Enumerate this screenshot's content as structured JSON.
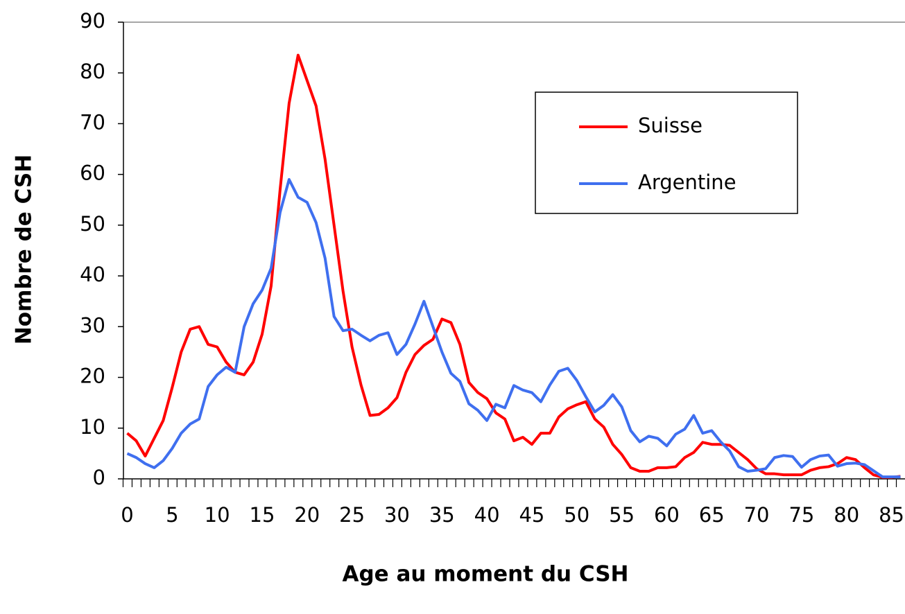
{
  "chart_data": {
    "type": "line",
    "xlabel": "Age au moment du CSH",
    "ylabel": "Nombre de CSH",
    "x": [
      0,
      1,
      2,
      3,
      4,
      5,
      6,
      7,
      8,
      9,
      10,
      11,
      12,
      13,
      14,
      15,
      16,
      17,
      18,
      19,
      20,
      21,
      22,
      23,
      24,
      25,
      26,
      27,
      28,
      29,
      30,
      31,
      32,
      33,
      34,
      35,
      36,
      37,
      38,
      39,
      40,
      41,
      42,
      43,
      44,
      45,
      46,
      47,
      48,
      49,
      50,
      51,
      52,
      53,
      54,
      55,
      56,
      57,
      58,
      59,
      60,
      61,
      62,
      63,
      64,
      65,
      66,
      67,
      68,
      69,
      70,
      71,
      72,
      73,
      74,
      75,
      76,
      77,
      78,
      79,
      80,
      81,
      82,
      83,
      84,
      85,
      86
    ],
    "series": [
      {
        "name": "Suisse",
        "color": "#ff0000",
        "values": [
          9,
          7.5,
          4.5,
          8,
          11.5,
          18,
          25,
          29.5,
          30,
          26.5,
          26,
          23,
          21,
          20.5,
          23,
          28.5,
          38,
          57,
          74,
          83.5,
          78.5,
          73.5,
          63,
          50,
          37,
          26,
          18.5,
          12.5,
          12.7,
          14,
          16,
          21,
          24.5,
          26.3,
          27.5,
          31.5,
          30.8,
          26.5,
          19,
          17,
          15.8,
          13,
          11.8,
          7.5,
          8.2,
          6.8,
          9,
          9,
          12.2,
          13.8,
          14.6,
          15.2,
          11.8,
          10.2,
          6.8,
          4.8,
          2.2,
          1.5,
          1.5,
          2.2,
          2.2,
          2.4,
          4.2,
          5.2,
          7.2,
          6.8,
          6.8,
          6.6,
          5.2,
          3.8,
          2,
          1,
          1,
          0.8,
          0.8,
          0.8,
          1.7,
          2.2,
          2.4,
          3,
          4.2,
          3.8,
          2.2,
          0.8,
          0.3,
          0.3,
          0.5
        ]
      },
      {
        "name": "Argentine",
        "color": "#3f6fef",
        "values": [
          5,
          4.2,
          3,
          2.2,
          3.6,
          6,
          9,
          10.8,
          11.8,
          18.2,
          20.5,
          22,
          21,
          30,
          34.5,
          37.2,
          41.5,
          52.5,
          59,
          55.5,
          54.5,
          50.5,
          43.5,
          32,
          29.2,
          29.5,
          28.3,
          27.2,
          28.3,
          28.8,
          24.5,
          26.5,
          30.5,
          35,
          30,
          25,
          20.8,
          19.2,
          14.8,
          13.5,
          11.5,
          14.7,
          14,
          18.4,
          17.5,
          17,
          15.2,
          18.5,
          21.2,
          21.8,
          19.4,
          16.2,
          13.2,
          14.5,
          16.6,
          14.2,
          9.5,
          7.3,
          8.4,
          8,
          6.5,
          8.8,
          9.8,
          12.5,
          9,
          9.5,
          7.3,
          5.5,
          2.4,
          1.5,
          1.7,
          2,
          4.2,
          4.6,
          4.4,
          2.3,
          3.8,
          4.5,
          4.7,
          2.5,
          3,
          3.1,
          2.8,
          1.6,
          0.4,
          0.4,
          0.4
        ]
      }
    ],
    "xlim": [
      -0.5,
      86.5
    ],
    "xticks": [
      0,
      5,
      10,
      15,
      20,
      25,
      30,
      35,
      40,
      45,
      50,
      55,
      60,
      65,
      70,
      75,
      80,
      85
    ],
    "ylim": [
      0,
      90
    ],
    "yticks": [
      0,
      10,
      20,
      30,
      40,
      50,
      60,
      70,
      80,
      90
    ],
    "legend": "upper right"
  }
}
